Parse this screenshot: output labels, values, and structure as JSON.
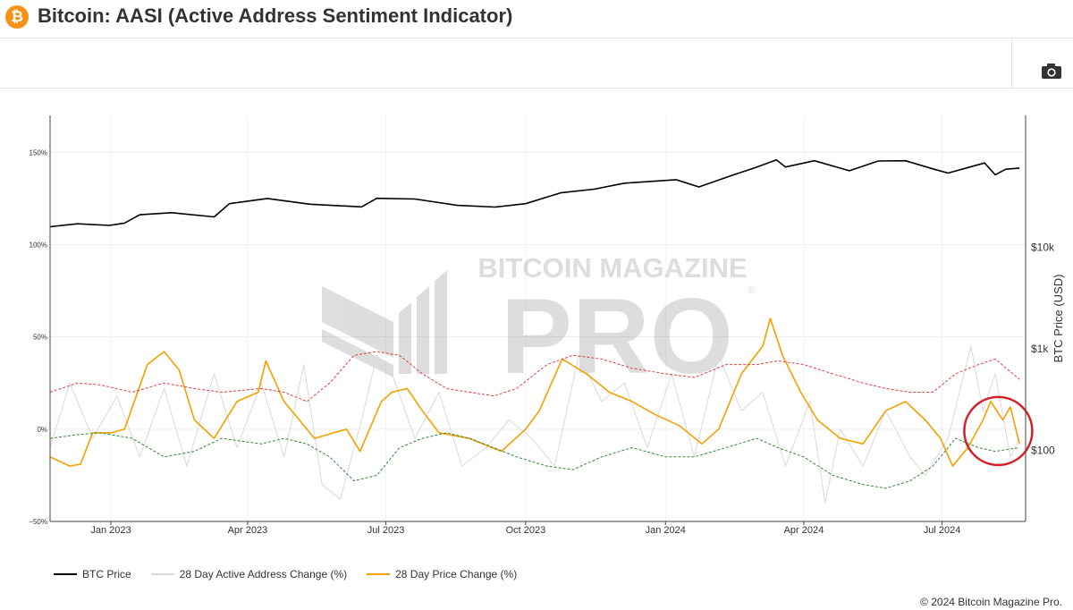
{
  "header": {
    "logo_glyph": "₿",
    "title": "Bitcoin: AASI (Active Address Sentiment Indicator)"
  },
  "toolbar": {
    "camera_icon": "camera-icon"
  },
  "watermark": {
    "line1": "BITCOIN MAGAZINE",
    "line2": "PRO",
    "mark": "®"
  },
  "footer": {
    "copyright": "© 2024 Bitcoin Magazine Pro."
  },
  "chart_data": {
    "type": "line",
    "x_range": [
      "2022-11-22",
      "2024-08-25"
    ],
    "x_ticks": [
      {
        "date": "2023-01-01",
        "label": "Jan 2023"
      },
      {
        "date": "2023-04-01",
        "label": "Apr 2023"
      },
      {
        "date": "2023-07-01",
        "label": "Jul 2023"
      },
      {
        "date": "2023-10-01",
        "label": "Oct 2023"
      },
      {
        "date": "2024-01-01",
        "label": "Jan 2024"
      },
      {
        "date": "2024-04-01",
        "label": "Apr 2024"
      },
      {
        "date": "2024-07-01",
        "label": "Jul 2024"
      }
    ],
    "y_left": {
      "range": [
        -50,
        170
      ],
      "ticks": [
        -50,
        0,
        50,
        100,
        150
      ],
      "tick_labels": [
        "−50%",
        "0%",
        "50%",
        "100%",
        "150%"
      ]
    },
    "y_right": {
      "title": "BTC Price (USD)",
      "scale": "log",
      "range": [
        20,
        200000
      ],
      "ticks": [
        100,
        1000,
        10000
      ],
      "tick_labels": [
        "$100",
        "$1k",
        "$10k"
      ]
    },
    "grid": true,
    "legend_placement": "bottom-left",
    "series": [
      {
        "name": "BTC Price",
        "axis": "right",
        "color": "#000000",
        "style": "solid",
        "points": [
          [
            "2022-11-22",
            16000
          ],
          [
            "2022-12-10",
            17100
          ],
          [
            "2022-12-31",
            16500
          ],
          [
            "2023-01-10",
            17400
          ],
          [
            "2023-01-20",
            21000
          ],
          [
            "2023-02-10",
            22000
          ],
          [
            "2023-03-10",
            20000
          ],
          [
            "2023-03-20",
            27000
          ],
          [
            "2023-04-14",
            30400
          ],
          [
            "2023-05-12",
            26700
          ],
          [
            "2023-06-15",
            25100
          ],
          [
            "2023-06-25",
            30500
          ],
          [
            "2023-07-20",
            30000
          ],
          [
            "2023-08-17",
            26000
          ],
          [
            "2023-09-11",
            25000
          ],
          [
            "2023-10-01",
            27000
          ],
          [
            "2023-10-24",
            34500
          ],
          [
            "2023-11-15",
            37500
          ],
          [
            "2023-12-05",
            43000
          ],
          [
            "2024-01-08",
            46500
          ],
          [
            "2024-01-23",
            39500
          ],
          [
            "2024-02-15",
            52000
          ],
          [
            "2024-02-29",
            61000
          ],
          [
            "2024-03-14",
            73000
          ],
          [
            "2024-03-20",
            62000
          ],
          [
            "2024-04-08",
            71500
          ],
          [
            "2024-05-01",
            57000
          ],
          [
            "2024-05-20",
            71000
          ],
          [
            "2024-06-07",
            71500
          ],
          [
            "2024-06-24",
            60000
          ],
          [
            "2024-07-05",
            54000
          ],
          [
            "2024-07-29",
            68000
          ],
          [
            "2024-08-05",
            52000
          ],
          [
            "2024-08-12",
            59000
          ],
          [
            "2024-08-21",
            60500
          ]
        ]
      },
      {
        "name": "28 Day Active Address Change (%)",
        "axis": "left",
        "color": "#d9d9d9",
        "style": "solid",
        "points": [
          [
            "2022-11-22",
            -10
          ],
          [
            "2022-12-05",
            25
          ],
          [
            "2022-12-20",
            -5
          ],
          [
            "2023-01-05",
            18
          ],
          [
            "2023-01-20",
            -15
          ],
          [
            "2023-02-05",
            22
          ],
          [
            "2023-02-20",
            -20
          ],
          [
            "2023-03-10",
            30
          ],
          [
            "2023-03-25",
            -10
          ],
          [
            "2023-04-10",
            25
          ],
          [
            "2023-04-25",
            -15
          ],
          [
            "2023-05-08",
            35
          ],
          [
            "2023-05-20",
            -30
          ],
          [
            "2023-06-01",
            -38
          ],
          [
            "2023-06-15",
            5
          ],
          [
            "2023-06-25",
            40
          ],
          [
            "2023-07-05",
            30
          ],
          [
            "2023-07-20",
            -5
          ],
          [
            "2023-08-05",
            20
          ],
          [
            "2023-08-20",
            -20
          ],
          [
            "2023-09-05",
            -10
          ],
          [
            "2023-09-20",
            5
          ],
          [
            "2023-10-05",
            -5
          ],
          [
            "2023-10-20",
            -20
          ],
          [
            "2023-11-05",
            40
          ],
          [
            "2023-11-20",
            15
          ],
          [
            "2023-12-05",
            25
          ],
          [
            "2023-12-20",
            -10
          ],
          [
            "2024-01-05",
            30
          ],
          [
            "2024-01-20",
            -15
          ],
          [
            "2024-02-05",
            40
          ],
          [
            "2024-02-20",
            10
          ],
          [
            "2024-03-05",
            20
          ],
          [
            "2024-03-20",
            -20
          ],
          [
            "2024-04-05",
            15
          ],
          [
            "2024-04-15",
            -40
          ],
          [
            "2024-04-25",
            0
          ],
          [
            "2024-05-10",
            -20
          ],
          [
            "2024-05-25",
            10
          ],
          [
            "2024-06-10",
            -15
          ],
          [
            "2024-06-20",
            -25
          ],
          [
            "2024-07-05",
            -5
          ],
          [
            "2024-07-20",
            45
          ],
          [
            "2024-07-28",
            10
          ],
          [
            "2024-08-05",
            30
          ],
          [
            "2024-08-15",
            -15
          ],
          [
            "2024-08-21",
            -5
          ]
        ]
      },
      {
        "name": "28 Day Price Change (%)",
        "axis": "left",
        "color": "#f5a000",
        "style": "solid",
        "points": [
          [
            "2022-11-22",
            -15
          ],
          [
            "2022-12-05",
            -20
          ],
          [
            "2022-12-12",
            -19
          ],
          [
            "2022-12-20",
            -2
          ],
          [
            "2023-01-01",
            -2
          ],
          [
            "2023-01-10",
            0
          ],
          [
            "2023-01-25",
            35
          ],
          [
            "2023-02-05",
            42
          ],
          [
            "2023-02-15",
            32
          ],
          [
            "2023-02-25",
            5
          ],
          [
            "2023-03-10",
            -5
          ],
          [
            "2023-03-25",
            15
          ],
          [
            "2023-04-08",
            20
          ],
          [
            "2023-04-13",
            37
          ],
          [
            "2023-04-25",
            15
          ],
          [
            "2023-05-15",
            -5
          ],
          [
            "2023-06-05",
            0
          ],
          [
            "2023-06-14",
            -12
          ],
          [
            "2023-06-28",
            15
          ],
          [
            "2023-07-05",
            20
          ],
          [
            "2023-07-15",
            22
          ],
          [
            "2023-07-25",
            10
          ],
          [
            "2023-08-05",
            -2
          ],
          [
            "2023-08-25",
            -5
          ],
          [
            "2023-09-15",
            -12
          ],
          [
            "2023-10-01",
            0
          ],
          [
            "2023-10-10",
            10
          ],
          [
            "2023-10-25",
            38
          ],
          [
            "2023-11-10",
            30
          ],
          [
            "2023-11-25",
            20
          ],
          [
            "2023-12-10",
            15
          ],
          [
            "2023-12-25",
            8
          ],
          [
            "2024-01-10",
            2
          ],
          [
            "2024-01-25",
            -8
          ],
          [
            "2024-02-05",
            0
          ],
          [
            "2024-02-20",
            30
          ],
          [
            "2024-03-05",
            45
          ],
          [
            "2024-03-10",
            60
          ],
          [
            "2024-03-18",
            40
          ],
          [
            "2024-03-30",
            20
          ],
          [
            "2024-04-10",
            5
          ],
          [
            "2024-04-25",
            -5
          ],
          [
            "2024-05-10",
            -8
          ],
          [
            "2024-05-25",
            10
          ],
          [
            "2024-06-07",
            15
          ],
          [
            "2024-06-20",
            5
          ],
          [
            "2024-06-30",
            -5
          ],
          [
            "2024-07-08",
            -20
          ],
          [
            "2024-07-18",
            -10
          ],
          [
            "2024-07-28",
            5
          ],
          [
            "2024-08-02",
            15
          ],
          [
            "2024-08-10",
            5
          ],
          [
            "2024-08-15",
            12
          ],
          [
            "2024-08-21",
            -8
          ]
        ]
      },
      {
        "name": "",
        "axis": "left",
        "color": "#e63b3b",
        "style": "dashed",
        "points": [
          [
            "2022-11-22",
            20
          ],
          [
            "2022-12-10",
            25
          ],
          [
            "2022-12-25",
            24
          ],
          [
            "2023-01-15",
            20
          ],
          [
            "2023-02-05",
            25
          ],
          [
            "2023-02-25",
            22
          ],
          [
            "2023-03-15",
            20
          ],
          [
            "2023-04-10",
            22
          ],
          [
            "2023-04-25",
            20
          ],
          [
            "2023-05-10",
            15
          ],
          [
            "2023-05-25",
            25
          ],
          [
            "2023-06-10",
            40
          ],
          [
            "2023-06-25",
            42
          ],
          [
            "2023-07-10",
            40
          ],
          [
            "2023-07-25",
            30
          ],
          [
            "2023-08-10",
            22
          ],
          [
            "2023-08-25",
            20
          ],
          [
            "2023-09-10",
            18
          ],
          [
            "2023-09-25",
            22
          ],
          [
            "2023-10-15",
            35
          ],
          [
            "2023-11-01",
            40
          ],
          [
            "2023-11-20",
            38
          ],
          [
            "2023-12-10",
            33
          ],
          [
            "2024-01-01",
            30
          ],
          [
            "2024-01-20",
            28
          ],
          [
            "2024-02-10",
            35
          ],
          [
            "2024-03-01",
            35
          ],
          [
            "2024-03-15",
            37
          ],
          [
            "2024-04-01",
            35
          ],
          [
            "2024-04-20",
            30
          ],
          [
            "2024-05-10",
            25
          ],
          [
            "2024-05-25",
            22
          ],
          [
            "2024-06-10",
            20
          ],
          [
            "2024-06-25",
            20
          ],
          [
            "2024-07-10",
            30
          ],
          [
            "2024-07-25",
            35
          ],
          [
            "2024-08-05",
            38
          ],
          [
            "2024-08-21",
            27
          ]
        ]
      },
      {
        "name": "",
        "axis": "left",
        "color": "#2e8b2e",
        "style": "dashed",
        "points": [
          [
            "2022-11-22",
            -5
          ],
          [
            "2022-12-10",
            -3
          ],
          [
            "2022-12-25",
            -2
          ],
          [
            "2023-01-15",
            -5
          ],
          [
            "2023-02-05",
            -15
          ],
          [
            "2023-02-25",
            -12
          ],
          [
            "2023-03-15",
            -5
          ],
          [
            "2023-04-10",
            -8
          ],
          [
            "2023-04-25",
            -5
          ],
          [
            "2023-05-10",
            -8
          ],
          [
            "2023-05-25",
            -15
          ],
          [
            "2023-06-10",
            -28
          ],
          [
            "2023-06-25",
            -25
          ],
          [
            "2023-07-10",
            -10
          ],
          [
            "2023-07-25",
            -5
          ],
          [
            "2023-08-10",
            -2
          ],
          [
            "2023-08-25",
            -5
          ],
          [
            "2023-09-10",
            -10
          ],
          [
            "2023-09-25",
            -15
          ],
          [
            "2023-10-15",
            -20
          ],
          [
            "2023-11-01",
            -22
          ],
          [
            "2023-11-20",
            -15
          ],
          [
            "2023-12-10",
            -10
          ],
          [
            "2024-01-01",
            -15
          ],
          [
            "2024-01-20",
            -15
          ],
          [
            "2024-02-10",
            -10
          ],
          [
            "2024-03-01",
            -5
          ],
          [
            "2024-03-15",
            -10
          ],
          [
            "2024-04-01",
            -15
          ],
          [
            "2024-04-20",
            -25
          ],
          [
            "2024-05-10",
            -30
          ],
          [
            "2024-05-25",
            -32
          ],
          [
            "2024-06-10",
            -28
          ],
          [
            "2024-06-25",
            -20
          ],
          [
            "2024-07-10",
            -5
          ],
          [
            "2024-07-25",
            -10
          ],
          [
            "2024-08-05",
            -12
          ],
          [
            "2024-08-21",
            -10
          ]
        ]
      }
    ],
    "annotations": [
      {
        "type": "circle",
        "color": "#d42027",
        "center": [
          "2024-08-07",
          -1
        ]
      }
    ]
  }
}
